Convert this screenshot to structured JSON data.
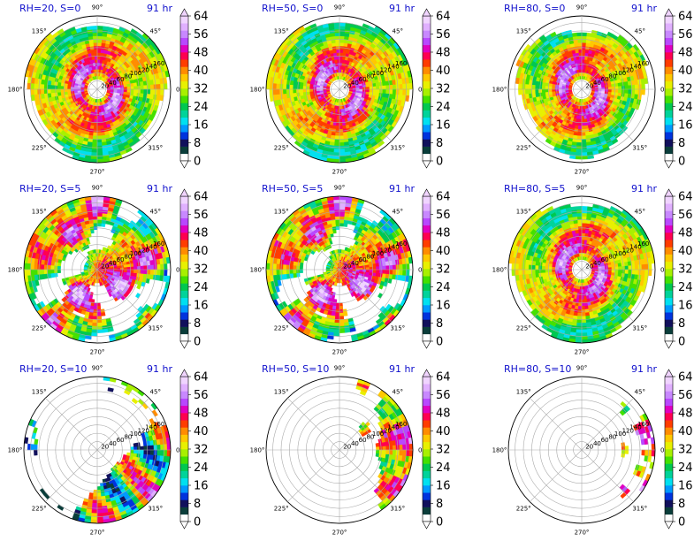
{
  "figure": {
    "time_label": "91 hr",
    "colorbar_ticks": [
      0,
      8,
      16,
      24,
      32,
      40,
      48,
      56,
      64
    ],
    "colormap": [
      "#ffffff",
      "#0a3d3a",
      "#11105c",
      "#0033dd",
      "#0099ff",
      "#00e0f0",
      "#00d39a",
      "#00c850",
      "#44e000",
      "#a8f000",
      "#e8f000",
      "#ffc800",
      "#ff8c00",
      "#ff3c00",
      "#ff0050",
      "#e000c0",
      "#b848ff",
      "#c888ff",
      "#e0b0ff",
      "#f0d4ff"
    ],
    "angle_labels": [
      "90°",
      "45°",
      "0°",
      "315°",
      "270°",
      "225°",
      "180°",
      "135°"
    ],
    "radial_labels": [
      "20",
      "40",
      "60",
      "80",
      "100",
      "120",
      "140",
      "160"
    ]
  },
  "chart_data": [
    {
      "type": "heatmap",
      "projection": "polar",
      "title": "RH=20, S=0",
      "time": "91 hr",
      "pattern": "ring",
      "colorbar": {
        "min": 0,
        "max": 64,
        "ticks": [
          0,
          8,
          16,
          24,
          32,
          40,
          48,
          56,
          64
        ]
      },
      "r_labels": [
        "20",
        "40",
        "60",
        "80",
        "100",
        "120",
        "140",
        "160"
      ],
      "fill_fraction": 0.85,
      "peak_value": 52
    },
    {
      "type": "heatmap",
      "projection": "polar",
      "title": "RH=50, S=0",
      "time": "91 hr",
      "pattern": "ring",
      "colorbar": {
        "min": 0,
        "max": 64,
        "ticks": [
          0,
          8,
          16,
          24,
          32,
          40,
          48,
          56,
          64
        ]
      },
      "r_labels": [
        "20",
        "40",
        "60",
        "80",
        "100",
        "120",
        "140",
        "160"
      ],
      "fill_fraction": 0.95,
      "peak_value": 52
    },
    {
      "type": "heatmap",
      "projection": "polar",
      "title": "RH=80, S=0",
      "time": "91 hr",
      "pattern": "ring",
      "colorbar": {
        "min": 0,
        "max": 64,
        "ticks": [
          0,
          8,
          16,
          24,
          32,
          40,
          48,
          56,
          64
        ]
      },
      "r_labels": [
        "20",
        "40",
        "60",
        "80",
        "100",
        "120",
        "140",
        "160"
      ],
      "fill_fraction": 0.7,
      "peak_value": 56
    },
    {
      "type": "heatmap",
      "projection": "polar",
      "title": "RH=20, S=5",
      "time": "91 hr",
      "pattern": "spread",
      "colorbar": {
        "min": 0,
        "max": 64,
        "ticks": [
          0,
          8,
          16,
          24,
          32,
          40,
          48,
          56,
          64
        ]
      },
      "r_labels": [
        "20",
        "40",
        "60",
        "80",
        "100",
        "120",
        "140",
        "160"
      ],
      "fill_fraction": 0.8,
      "peak_value": 52
    },
    {
      "type": "heatmap",
      "projection": "polar",
      "title": "RH=50, S=5",
      "time": "91 hr",
      "pattern": "spread",
      "colorbar": {
        "min": 0,
        "max": 64,
        "ticks": [
          0,
          8,
          16,
          24,
          32,
          40,
          48,
          56,
          64
        ]
      },
      "r_labels": [
        "20",
        "40",
        "60",
        "80",
        "100",
        "120",
        "140",
        "160"
      ],
      "fill_fraction": 0.8,
      "peak_value": 52
    },
    {
      "type": "heatmap",
      "projection": "polar",
      "title": "RH=80, S=5",
      "time": "91 hr",
      "pattern": "ring",
      "colorbar": {
        "min": 0,
        "max": 64,
        "ticks": [
          0,
          8,
          16,
          24,
          32,
          40,
          48,
          56,
          64
        ]
      },
      "r_labels": [
        "20",
        "40",
        "60",
        "80",
        "100",
        "120",
        "140",
        "160"
      ],
      "fill_fraction": 0.9,
      "peak_value": 58
    },
    {
      "type": "heatmap",
      "projection": "polar",
      "title": "RH=20, S=10",
      "time": "91 hr",
      "pattern": "southeast",
      "colorbar": {
        "min": 0,
        "max": 64,
        "ticks": [
          0,
          8,
          16,
          24,
          32,
          40,
          48,
          56,
          64
        ]
      },
      "r_labels": [
        "20",
        "40",
        "60",
        "80",
        "100",
        "120",
        "140",
        "160"
      ],
      "fill_fraction": 0.35,
      "peak_value": 52
    },
    {
      "type": "heatmap",
      "projection": "polar",
      "title": "RH=50, S=10",
      "time": "91 hr",
      "pattern": "east",
      "colorbar": {
        "min": 0,
        "max": 64,
        "ticks": [
          0,
          8,
          16,
          24,
          32,
          40,
          48,
          56,
          64
        ]
      },
      "r_labels": [
        "20",
        "40",
        "60",
        "80",
        "100",
        "120",
        "140",
        "160"
      ],
      "fill_fraction": 0.25,
      "peak_value": 52
    },
    {
      "type": "heatmap",
      "projection": "polar",
      "title": "RH=80, S=10",
      "time": "91 hr",
      "pattern": "east",
      "colorbar": {
        "min": 0,
        "max": 64,
        "ticks": [
          0,
          8,
          16,
          24,
          32,
          40,
          48,
          56,
          64
        ]
      },
      "r_labels": [
        "20",
        "40",
        "60",
        "80",
        "100",
        "120",
        "140",
        "160"
      ],
      "fill_fraction": 0.15,
      "peak_value": 40
    }
  ]
}
